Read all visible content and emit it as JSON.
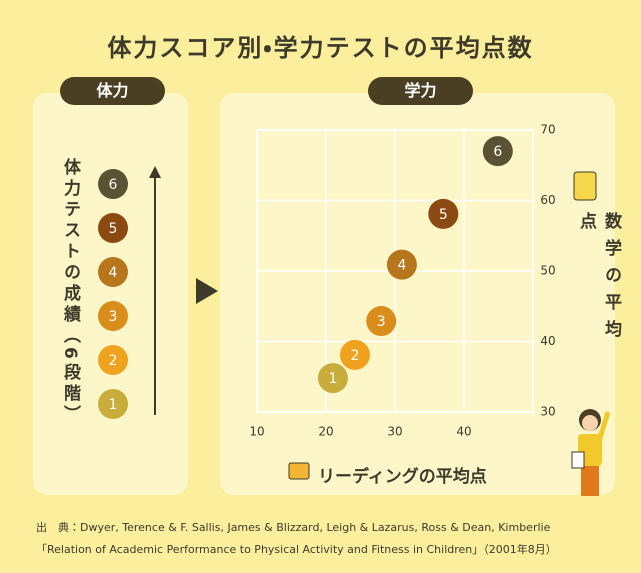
{
  "title": "体力スコア別・学力テストの平均点数",
  "left_panel": {
    "heading": "体力",
    "label": "体力テストの成績（6段階）"
  },
  "chart_data": {
    "type": "scatter",
    "title": "学力",
    "x_label": "リーディングの平均点",
    "y_label": "数学の平均点",
    "x": [
      21.0,
      24.2,
      28.0,
      31.0,
      37.0,
      44.9
    ],
    "values": [
      34.8,
      38.1,
      42.9,
      50.9,
      58.1,
      67.0
    ],
    "point_labels": [
      "1",
      "2",
      "3",
      "4",
      "5",
      "6"
    ],
    "colors": [
      "#c9ad3c",
      "#efa21e",
      "#d98d1b",
      "#b7751c",
      "#8a4a12",
      "#5b5234"
    ],
    "xlim": [
      10,
      50
    ],
    "xticks": [
      10,
      20,
      30,
      40
    ],
    "ylim": [
      30,
      70
    ],
    "yticks": [
      30,
      40,
      50,
      60,
      70
    ],
    "grid": true
  },
  "source": [
    "出　典：Dwyer, Terence & F. Sallis, James & Blizzard, Leigh & Lazarus, Ross & Dean, Kimberlie",
    "「Relation of Academic Performance to Physical Activity and Fitness in Children」（2001年8月）"
  ]
}
